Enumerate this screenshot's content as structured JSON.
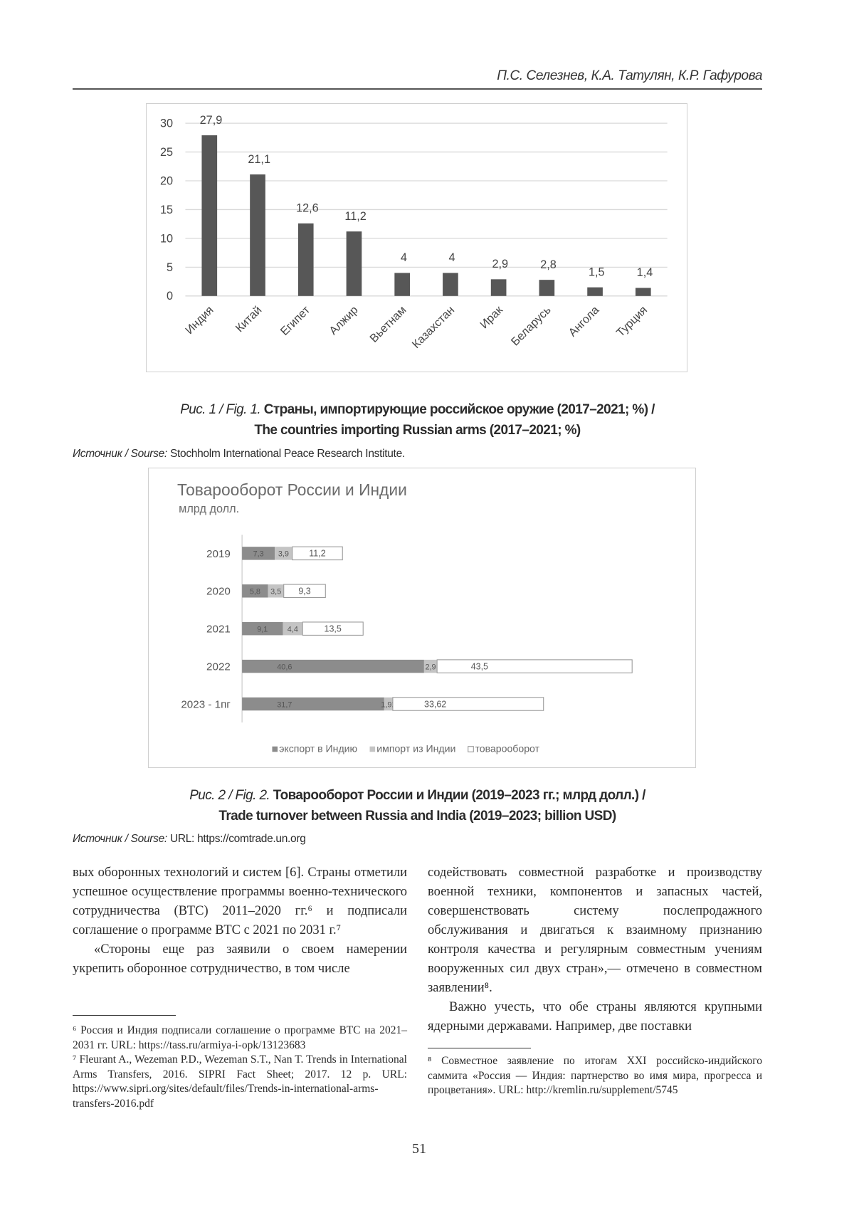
{
  "header": "П.С. Селезнев, К.А. Татулян, К.Р. Гафурова",
  "chart_data": [
    {
      "type": "bar",
      "categories": [
        "Индия",
        "Китай",
        "Египет",
        "Алжир",
        "Вьетнам",
        "Казахстан",
        "Ирак",
        "Беларусь",
        "Ангола",
        "Турция"
      ],
      "values": [
        27.9,
        21.1,
        12.6,
        11.2,
        4,
        4,
        2.9,
        2.8,
        1.5,
        1.4
      ],
      "value_labels": [
        "27,9",
        "21,1",
        "12,6",
        "11,2",
        "4",
        "4",
        "2,9",
        "2,8",
        "1,5",
        "1,4"
      ],
      "color": "#575757",
      "ylim": [
        0,
        30
      ],
      "yticks": [
        0,
        5,
        10,
        15,
        20,
        25,
        30
      ],
      "grid": true
    },
    {
      "type": "bar",
      "orientation": "horizontal",
      "stacked": true,
      "title": "Товарооборот России и Индии",
      "subtitle": "млрд долл.",
      "categories": [
        "2019",
        "2020",
        "2021",
        "2022",
        "2023 - 1пг"
      ],
      "series": [
        {
          "name": "экспорт в Индию",
          "color": "#8c8c8c",
          "values": [
            7.3,
            5.8,
            9.1,
            40.6,
            31.7
          ],
          "value_labels": [
            "7,3",
            "5,8",
            "9,1",
            "40,6",
            "31,7"
          ]
        },
        {
          "name": "импорт из Индии",
          "color": "#c4c4c4",
          "values": [
            3.9,
            3.5,
            4.4,
            2.9,
            1.92
          ],
          "value_labels": [
            "3,9",
            "3,5",
            "4,4",
            "2,9",
            "1,92"
          ]
        },
        {
          "name": "товарооборот",
          "color": "#ffffff",
          "values": [
            11.2,
            9.3,
            13.5,
            43.5,
            33.62
          ],
          "value_labels": [
            "11,2",
            "9,3",
            "13,5",
            "43,5",
            "33,62"
          ]
        }
      ],
      "legend": "bottom"
    }
  ],
  "figures": [
    {
      "label": "Рис. 1 / Fig. 1.",
      "title_lines": [
        "Страны, импортирующие российское оружие (2017–2021; %) /",
        "The countries importing Russian arms (2017–2021; %)"
      ],
      "source_label": "Источник / Sourse:",
      "source": "Stochholm International Peace Research Institute."
    },
    {
      "label": "Рис. 2 / Fig. 2.",
      "title_lines": [
        "Товарооборот России и Индии (2019–2023 гг.; млрд долл.) /",
        "Trade turnover between Russia and India (2019–2023; billion USD)"
      ],
      "source_label": "Источник / Sourse:",
      "source": "URL: https://comtrade.un.org"
    }
  ],
  "body": {
    "left": [
      "вых оборонных технологий и систем [6]. Страны отметили успешное осуществление программы военно-технического сотрудничества (ВТС) 2011–2020 гг.⁶ и подписали соглашение о программе ВТС с 2021 по 2031 г.⁷",
      "«Стороны еще раз заявили о своем намерении укрепить оборонное сотрудничество, в том числе"
    ],
    "right": [
      "содействовать совместной разработке и производству военной техники, компонентов и запасных частей, совершенствовать систему послепродажного обслуживания и двигаться к взаимному признанию контроля качества и регулярным совместным учениям вооруженных сил двух стран»,— отмечено в совместном заявлении⁸.",
      "Важно учесть, что обе страны являются крупными ядерными державами. Например, две поставки"
    ]
  },
  "footnotes": {
    "left": [
      "⁶ Россия и Индия подписали соглашение о программе ВТС на 2021–2031 гг. URL: https://tass.ru/armiya-i-opk/13123683",
      "⁷ Fleurant A., Wezeman P.D., Wezeman S.T., Nan T. Trends in International Arms Transfers, 2016. SIPRI Fact Sheet; 2017. 12 p. URL: https://www.sipri.org/sites/default/files/Trends-in-international-arms-transfers-2016.pdf"
    ],
    "right": [
      "⁸ Совместное заявление по итогам XXI российско-индийского саммита «Россия — Индия: партнерство во имя мира, прогресса и процветания». URL: http://kremlin.ru/supplement/5745"
    ]
  },
  "page_number": "51"
}
